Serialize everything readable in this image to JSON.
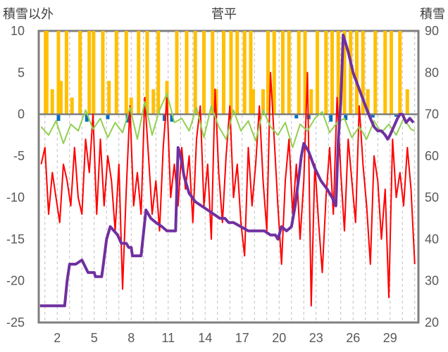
{
  "chart_data": {
    "type": "line",
    "title": "菅平",
    "ylabel_left": "積雪以外",
    "ylabel_right": "積雪",
    "x_ticks": [
      "2",
      "5",
      "8",
      "11",
      "14",
      "17",
      "20",
      "23",
      "26",
      "29"
    ],
    "x_tick_days": [
      2,
      5,
      8,
      11,
      14,
      17,
      20,
      23,
      26,
      29
    ],
    "x_range_days": [
      0.5,
      31.3
    ],
    "ylim_left": [
      -25,
      10
    ],
    "ylim_right": [
      20,
      90
    ],
    "yticks_left": [
      "10",
      "5",
      "0",
      "-5",
      "-10",
      "-15",
      "-20",
      "-25"
    ],
    "yticks_right": [
      "90",
      "80",
      "70",
      "60",
      "50",
      "40",
      "30",
      "20"
    ],
    "grid": "vertical dashed",
    "colors": {
      "precipitation": "#FFC000",
      "sunshine": "#0070C0",
      "temperature": "#FF0000",
      "humidity_green": "#92D050",
      "snow_depth": "#7030A0",
      "frame": "#7F7F7F"
    },
    "series": [
      {
        "axis": "left",
        "color": "#FFC000",
        "kind": "bars",
        "x": [
          1.05,
          1.15,
          1.6,
          2.1,
          2.3,
          2.75,
          3.2,
          3.85,
          4.6,
          4.95,
          5.7,
          6.2,
          6.8,
          7.6,
          8.0,
          8.6,
          9.3,
          9.8,
          10.2,
          10.9,
          11.7,
          12.5,
          13.2,
          13.9,
          14.6,
          14.9,
          15.5,
          16.1,
          16.6,
          17.2,
          17.7,
          17.9,
          18.7,
          19.1,
          19.6,
          20.3,
          20.8,
          21.6,
          22.1,
          22.6,
          23.1,
          23.8,
          24.3,
          24.8,
          25.3,
          25.8,
          26.3,
          26.8,
          27.2,
          27.8,
          28.6,
          29.1,
          29.8,
          30.4
        ],
        "values": [
          10,
          10,
          3,
          10,
          4,
          10,
          2,
          10,
          10,
          10,
          10,
          4,
          10,
          10,
          2,
          10,
          10,
          3,
          10,
          4,
          10,
          10,
          10,
          10,
          10,
          3,
          10,
          10,
          10,
          10,
          10,
          3,
          3,
          10,
          10,
          10,
          10,
          10,
          10,
          3,
          10,
          10,
          10,
          10,
          10,
          10,
          10,
          10,
          3,
          10,
          10,
          10,
          10,
          3
        ]
      },
      {
        "axis": "left",
        "color": "#0070C0",
        "kind": "bars",
        "x": [
          2.1,
          4.4,
          6.1,
          7.7,
          10.7,
          11.3,
          21.4,
          22.4,
          24.2,
          25.4,
          27.6,
          29.5
        ],
        "values": [
          -0.8,
          -0.9,
          -0.6,
          -1.0,
          -0.8,
          -0.9,
          -0.5,
          -0.6,
          -0.9,
          -0.7,
          -0.4,
          -0.3
        ]
      },
      {
        "axis": "left",
        "color": "#FF0000",
        "kind": "line",
        "x": [
          0.7,
          1.0,
          1.3,
          1.6,
          1.9,
          2.2,
          2.5,
          2.8,
          3.1,
          3.4,
          3.7,
          4.0,
          4.3,
          4.6,
          4.9,
          5.2,
          5.5,
          5.8,
          6.1,
          6.4,
          6.7,
          7.0,
          7.3,
          7.6,
          7.9,
          8.2,
          8.5,
          8.8,
          9.1,
          9.4,
          9.7,
          10.0,
          10.3,
          10.6,
          10.9,
          11.2,
          11.5,
          11.8,
          12.1,
          12.4,
          12.7,
          13.0,
          13.3,
          13.6,
          13.9,
          14.2,
          14.5,
          14.8,
          15.1,
          15.4,
          15.7,
          16.0,
          16.3,
          16.6,
          16.9,
          17.2,
          17.5,
          17.8,
          18.1,
          18.4,
          18.7,
          19.0,
          19.3,
          19.6,
          19.9,
          20.2,
          20.5,
          20.8,
          21.1,
          21.4,
          21.7,
          22.0,
          22.3,
          22.6,
          22.9,
          23.2,
          23.5,
          23.8,
          24.1,
          24.4,
          24.7,
          25.0,
          25.3,
          25.6,
          25.9,
          26.2,
          26.5,
          26.8,
          27.1,
          27.4,
          27.7,
          28.0,
          28.3,
          28.6,
          28.9,
          29.2,
          29.5,
          29.8,
          30.1,
          30.4,
          30.7,
          31.0
        ],
        "values": [
          -6,
          -4,
          -12,
          -7,
          -10,
          -13,
          -6,
          -8,
          -11,
          -4,
          -10,
          -12,
          -3,
          -7,
          0,
          -12,
          -3,
          -11,
          -5,
          -8,
          -14,
          -6,
          -21,
          -9,
          1,
          -11,
          -7,
          -12,
          2,
          -5,
          -12,
          -8,
          -14,
          -4,
          2,
          -10,
          -6,
          -11,
          -4,
          -9,
          -5,
          -13,
          -3,
          1,
          -11,
          -6,
          -15,
          3,
          -7,
          -13,
          -5,
          1,
          -10,
          -6,
          -13,
          -17,
          -4,
          -11,
          -6,
          1,
          -8,
          -14,
          5,
          -3,
          -11,
          -18,
          -8,
          -3,
          -12,
          -6,
          -15,
          -8,
          5,
          -23,
          -6,
          -13,
          -19,
          -10,
          -4,
          -12,
          2,
          -7,
          -14,
          -3,
          -8,
          -13,
          1,
          -6,
          -11,
          -18,
          -5,
          -8,
          -15,
          -9,
          -22,
          -3,
          -10,
          -7,
          -11,
          -4,
          -9,
          -18
        ]
      },
      {
        "axis": "left",
        "color": "#92D050",
        "kind": "line",
        "x": [
          0.7,
          1.3,
          1.9,
          2.5,
          3.1,
          3.7,
          4.3,
          4.9,
          5.5,
          6.1,
          6.7,
          7.3,
          7.9,
          8.5,
          9.1,
          9.7,
          10.3,
          10.9,
          11.5,
          12.1,
          12.7,
          13.3,
          13.9,
          14.5,
          15.1,
          15.7,
          16.3,
          16.9,
          17.5,
          18.1,
          18.7,
          19.3,
          19.9,
          20.5,
          21.1,
          21.7,
          22.3,
          22.9,
          23.5,
          24.1,
          24.7,
          25.3,
          25.9,
          26.5,
          27.1,
          27.7,
          28.3,
          28.9,
          29.5,
          30.1,
          30.7,
          31.0
        ],
        "values": [
          -1.5,
          -2.5,
          -0.8,
          -3.5,
          -1.2,
          -2.0,
          0.5,
          -1.8,
          -0.5,
          -2.8,
          -1.0,
          -2.2,
          0.8,
          -3.0,
          1.5,
          -2.5,
          0.5,
          2.5,
          -1.0,
          -0.5,
          -2.0,
          0.8,
          -2.8,
          1.0,
          -1.5,
          -3.0,
          0.5,
          -2.0,
          -0.8,
          -3.2,
          0.5,
          -1.5,
          -2.5,
          -1.0,
          -4.0,
          -1.2,
          -2.0,
          -0.5,
          0.3,
          -2.2,
          -1.0,
          -0.5,
          -2.8,
          -1.5,
          -3.0,
          -0.8,
          -2.2,
          -1.2,
          -2.5,
          -0.5,
          -1.8,
          -2.0
        ]
      },
      {
        "axis": "right",
        "color": "#7030A0",
        "kind": "line",
        "x": [
          0.6,
          1.0,
          1.5,
          2.0,
          2.1,
          2.6,
          2.8,
          3.0,
          3.5,
          4.0,
          4.5,
          5.0,
          5.1,
          5.3,
          5.6,
          5.7,
          6.0,
          6.3,
          6.6,
          6.9,
          7.2,
          7.6,
          7.8,
          8.0,
          8.1,
          8.4,
          8.8,
          9.2,
          9.6,
          10.0,
          10.5,
          10.9,
          11.2,
          11.6,
          11.8,
          12.0,
          12.3,
          12.7,
          13.2,
          13.7,
          14.2,
          14.7,
          15.2,
          15.6,
          15.9,
          16.3,
          16.9,
          17.5,
          18.2,
          18.8,
          19.3,
          19.7,
          19.9,
          20.2,
          20.6,
          21.0,
          21.3,
          21.6,
          21.8,
          22.0,
          22.4,
          22.9,
          23.4,
          23.9,
          24.3,
          24.6,
          24.8,
          25.0,
          25.2,
          25.6,
          26.0,
          26.5,
          27.0,
          27.4,
          27.7,
          28.0,
          28.3,
          28.6,
          28.8,
          29.0,
          29.3,
          29.6,
          29.8,
          30.0,
          30.3,
          30.6,
          30.9
        ],
        "values": [
          24,
          24,
          24,
          24,
          24,
          24,
          30,
          34,
          34,
          35,
          32,
          32,
          31,
          31,
          31,
          33,
          40,
          43,
          42,
          41,
          39,
          39,
          38,
          38,
          36,
          36,
          36,
          47,
          45,
          44,
          43,
          42,
          42,
          42,
          62,
          60,
          55,
          51,
          49,
          48,
          47,
          46,
          45,
          45,
          44,
          44,
          43,
          42,
          42,
          42,
          41,
          41,
          40,
          43,
          42,
          43,
          48,
          55,
          60,
          63,
          61,
          57,
          54,
          52,
          50,
          48,
          64,
          73,
          89,
          85,
          80,
          76,
          72,
          69,
          67,
          66,
          66,
          65,
          64,
          65,
          67,
          69,
          70,
          70,
          68,
          69,
          68
        ]
      }
    ]
  }
}
